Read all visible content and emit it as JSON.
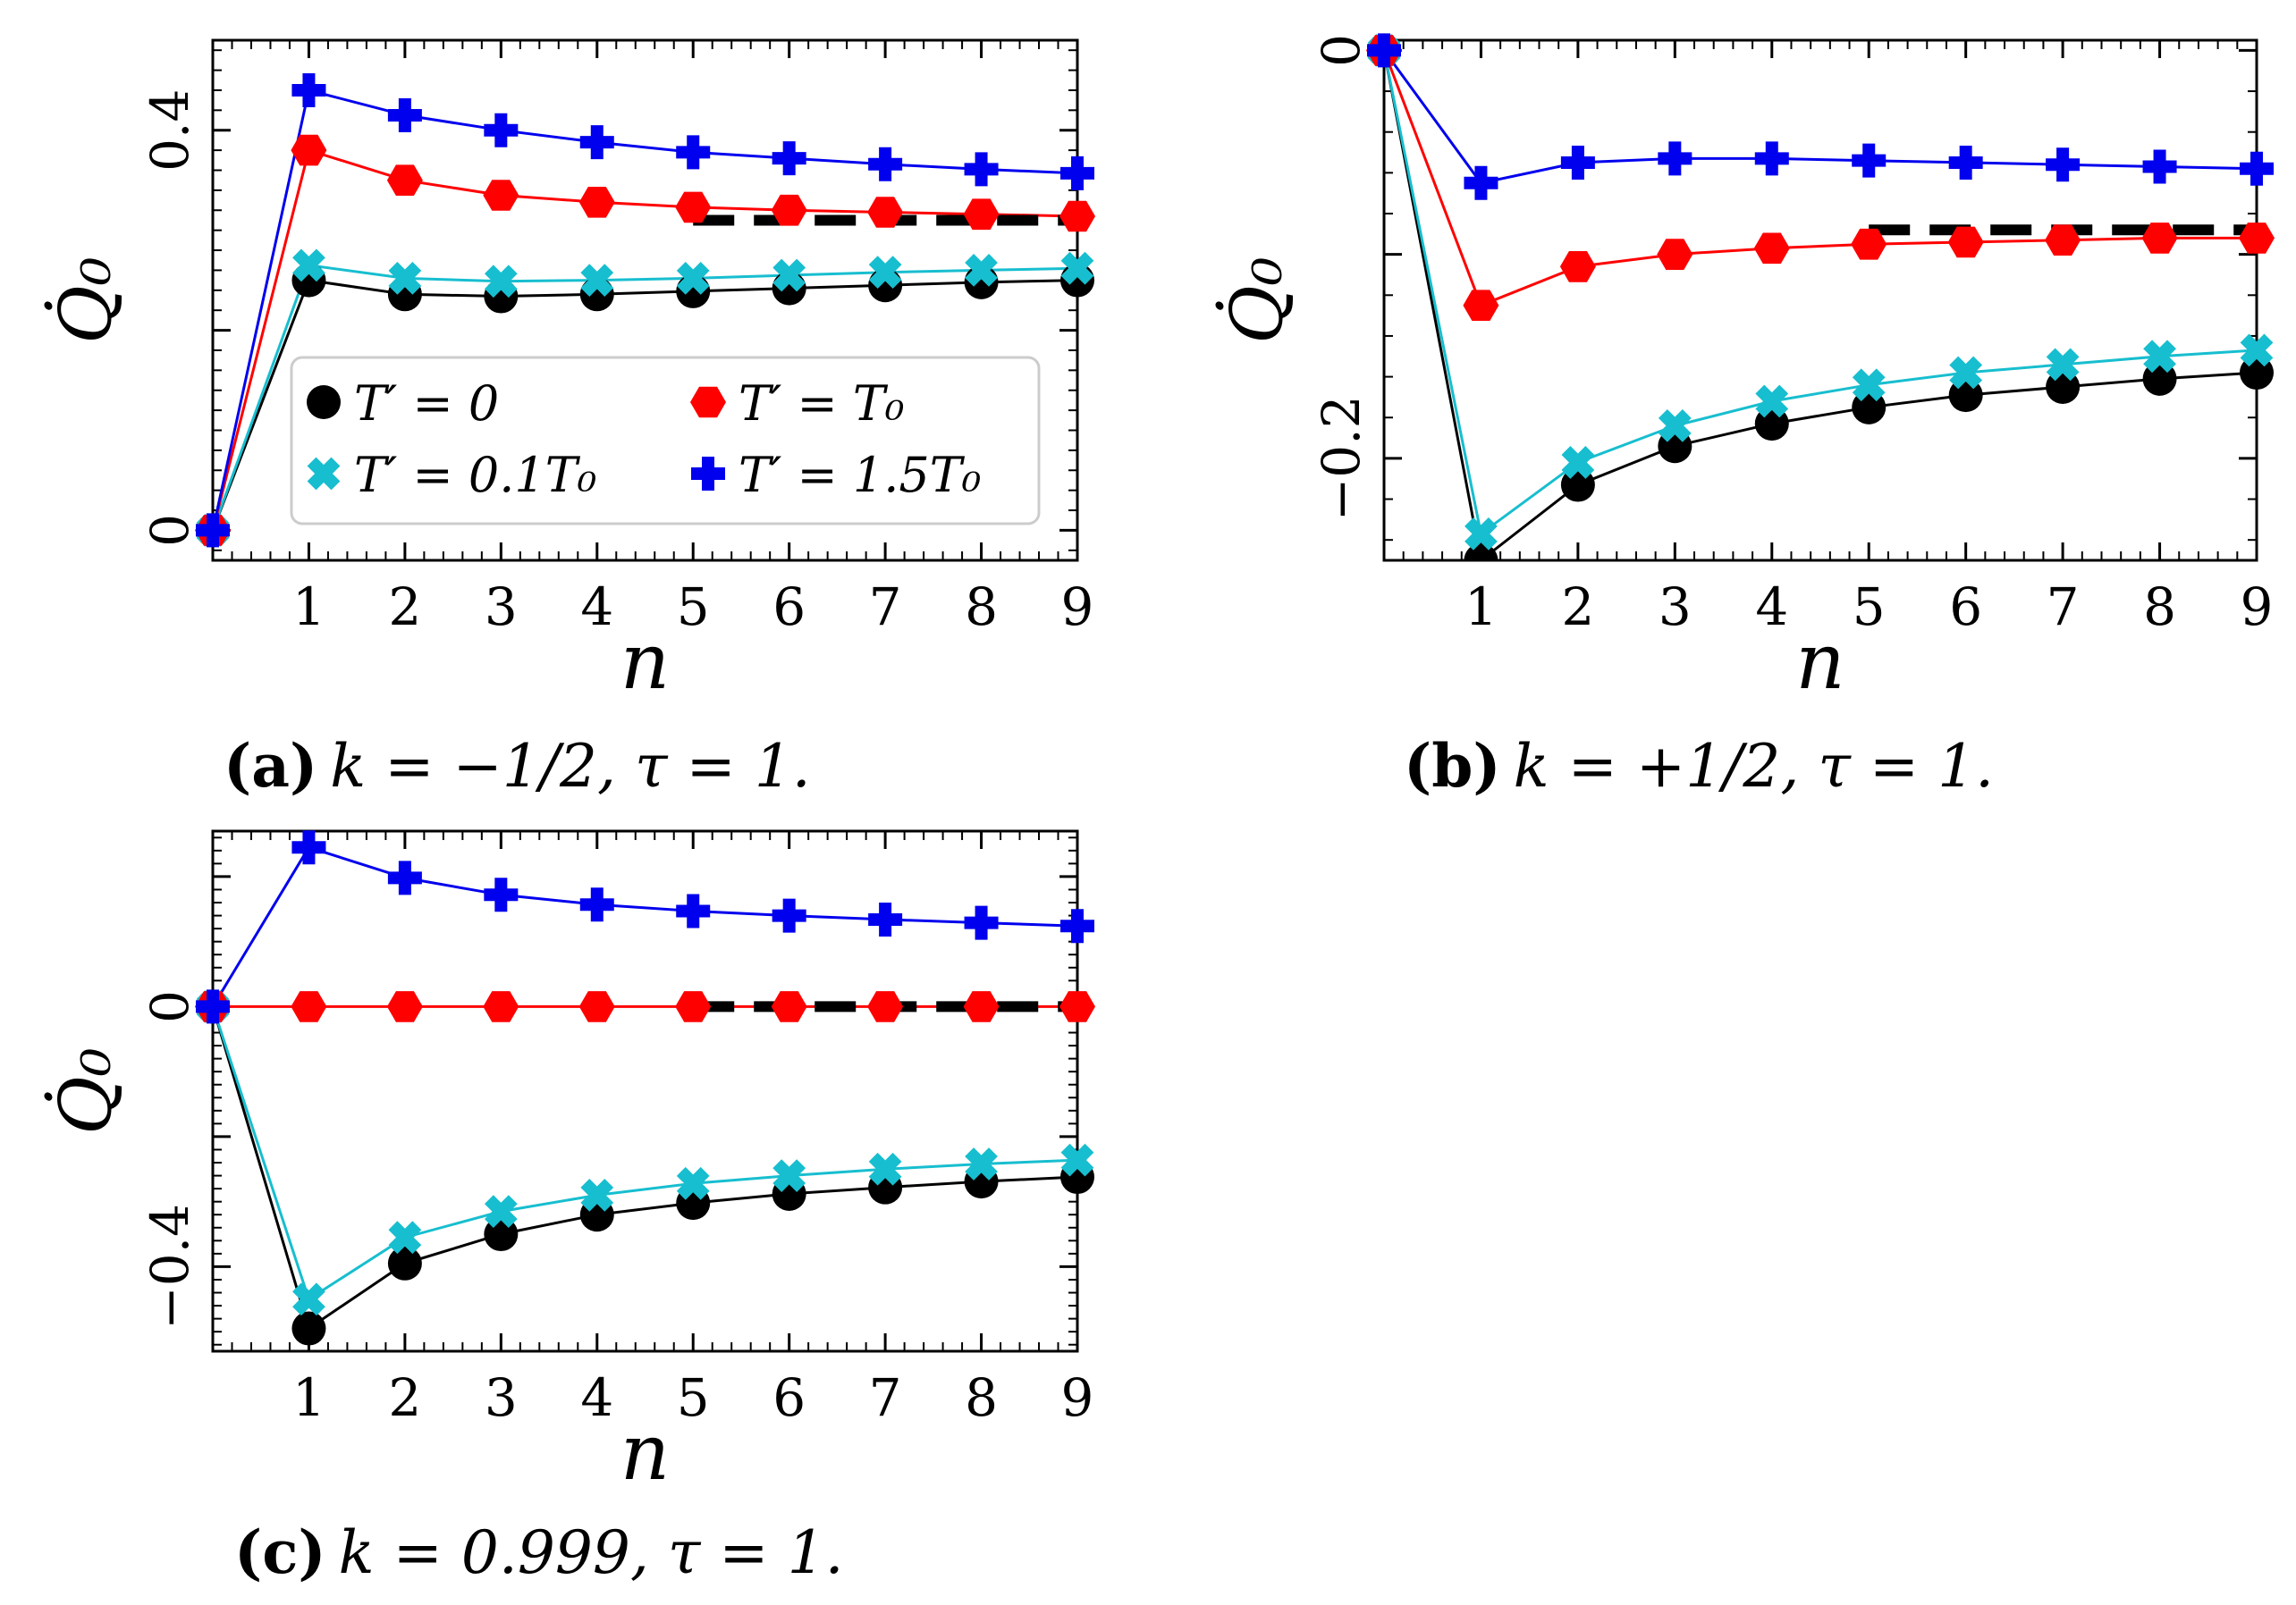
{
  "chart_data": [
    {
      "id": "a",
      "type": "line",
      "caption": {
        "label": "(a)",
        "text": "k = −1/2, τ = 1."
      },
      "xlabel": "n",
      "ylabel": "Q̇₀",
      "xlim": [
        0,
        9
      ],
      "ylim": [
        -0.03,
        0.49
      ],
      "xticks": [
        1,
        2,
        3,
        4,
        5,
        6,
        7,
        8,
        9
      ],
      "yticks": [
        {
          "v": 0,
          "label": "0"
        },
        {
          "v": 0.2,
          "label": ""
        },
        {
          "v": 0.4,
          "label": "0.4"
        }
      ],
      "x": [
        0,
        1,
        2,
        3,
        4,
        5,
        6,
        7,
        8,
        9
      ],
      "series": [
        {
          "name": "T′ = 0",
          "color": "#000000",
          "marker": "circle",
          "values": [
            0,
            0.25,
            0.236,
            0.234,
            0.236,
            0.239,
            0.242,
            0.245,
            0.248,
            0.25
          ]
        },
        {
          "name": "T′ = 0.1T₀",
          "color": "#17becf",
          "marker": "x",
          "values": [
            0,
            0.265,
            0.252,
            0.249,
            0.25,
            0.252,
            0.255,
            0.258,
            0.26,
            0.262
          ]
        },
        {
          "name": "T′ = T₀",
          "color": "#ff0000",
          "marker": "hexagon",
          "values": [
            0,
            0.38,
            0.35,
            0.335,
            0.328,
            0.323,
            0.32,
            0.318,
            0.316,
            0.314
          ]
        },
        {
          "name": "T′ = 1.5T₀",
          "color": "#0000ee",
          "marker": "plus",
          "values": [
            0,
            0.44,
            0.415,
            0.4,
            0.388,
            0.378,
            0.372,
            0.366,
            0.361,
            0.357
          ]
        }
      ],
      "asymptote": {
        "x": [
          5,
          9
        ],
        "y": 0.31
      },
      "legend": {
        "position": "lower-center",
        "entries": [
          "T′ = 0",
          "T′ = T₀",
          "T′ = 0.1T₀",
          "T′ = 1.5T₀"
        ]
      }
    },
    {
      "id": "b",
      "type": "line",
      "caption": {
        "label": "(b)",
        "text": "k = +1/2, τ = 1."
      },
      "xlabel": "n",
      "ylabel": "Q̇₀",
      "xlim": [
        0,
        9
      ],
      "ylim": [
        -0.25,
        0.005
      ],
      "xticks": [
        1,
        2,
        3,
        4,
        5,
        6,
        7,
        8,
        9
      ],
      "yticks": [
        {
          "v": 0,
          "label": "0"
        },
        {
          "v": -0.1,
          "label": ""
        },
        {
          "v": -0.2,
          "label": "−0.2"
        }
      ],
      "x": [
        0,
        1,
        2,
        3,
        4,
        5,
        6,
        7,
        8,
        9
      ],
      "series": [
        {
          "name": "T′ = 0",
          "color": "#000000",
          "marker": "circle",
          "values": [
            0,
            -0.25,
            -0.213,
            -0.194,
            -0.183,
            -0.175,
            -0.169,
            -0.165,
            -0.161,
            -0.158
          ]
        },
        {
          "name": "T′ = 0.1T₀",
          "color": "#17becf",
          "marker": "x",
          "values": [
            0,
            -0.237,
            -0.202,
            -0.184,
            -0.172,
            -0.164,
            -0.158,
            -0.154,
            -0.15,
            -0.147
          ]
        },
        {
          "name": "T′ = T₀",
          "color": "#ff0000",
          "marker": "hexagon",
          "values": [
            0,
            -0.125,
            -0.106,
            -0.1,
            -0.097,
            -0.095,
            -0.094,
            -0.093,
            -0.092,
            -0.092
          ]
        },
        {
          "name": "T′ = 1.5T₀",
          "color": "#0000ee",
          "marker": "plus",
          "values": [
            0,
            -0.065,
            -0.055,
            -0.053,
            -0.053,
            -0.054,
            -0.055,
            -0.056,
            -0.057,
            -0.058
          ]
        }
      ],
      "asymptote": {
        "x": [
          5,
          9
        ],
        "y": -0.088
      }
    },
    {
      "id": "c",
      "type": "line",
      "caption": {
        "label": "(c)",
        "text": "k = 0.999, τ = 1."
      },
      "xlabel": "n",
      "ylabel": "Q̇₀",
      "xlim": [
        0,
        9
      ],
      "ylim": [
        -0.53,
        0.27
      ],
      "xticks": [
        1,
        2,
        3,
        4,
        5,
        6,
        7,
        8,
        9
      ],
      "yticks": [
        {
          "v": 0.2,
          "label": ""
        },
        {
          "v": 0,
          "label": "0"
        },
        {
          "v": -0.2,
          "label": ""
        },
        {
          "v": -0.4,
          "label": "−0.4"
        }
      ],
      "x": [
        0,
        1,
        2,
        3,
        4,
        5,
        6,
        7,
        8,
        9
      ],
      "series": [
        {
          "name": "T′ = 0",
          "color": "#000000",
          "marker": "circle",
          "values": [
            0,
            -0.495,
            -0.395,
            -0.35,
            -0.32,
            -0.302,
            -0.288,
            -0.278,
            -0.269,
            -0.262
          ]
        },
        {
          "name": "T′ = 0.1T₀",
          "color": "#17becf",
          "marker": "x",
          "values": [
            0,
            -0.45,
            -0.355,
            -0.315,
            -0.29,
            -0.272,
            -0.26,
            -0.25,
            -0.242,
            -0.236
          ]
        },
        {
          "name": "T′ = T₀",
          "color": "#ff0000",
          "marker": "hexagon",
          "values": [
            0,
            0,
            0,
            0,
            0,
            0,
            0,
            0,
            0,
            0
          ]
        },
        {
          "name": "T′ = 1.5T₀",
          "color": "#0000ee",
          "marker": "plus",
          "values": [
            0,
            0.245,
            0.198,
            0.172,
            0.157,
            0.147,
            0.14,
            0.134,
            0.129,
            0.124
          ]
        }
      ],
      "asymptote": {
        "x": [
          5,
          9
        ],
        "y": 0
      }
    }
  ]
}
